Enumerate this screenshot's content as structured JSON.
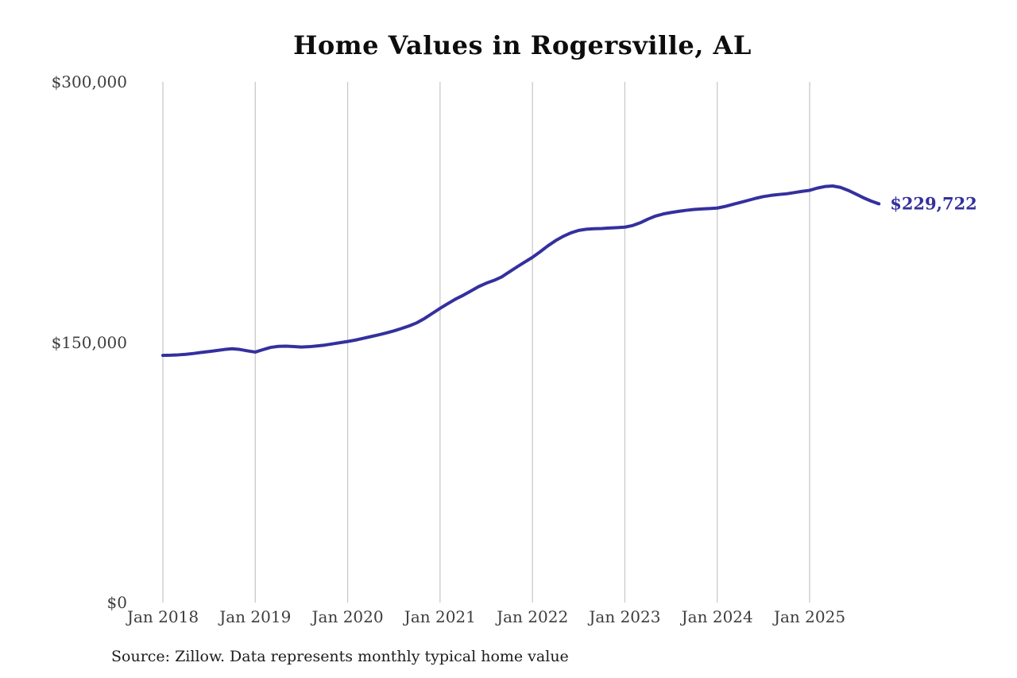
{
  "page": {
    "background": "#ffffff"
  },
  "chart_data": {
    "type": "line",
    "title": "Home Values in Rogersville, AL",
    "source_note": "Source: Zillow. Data represents monthly typical home value",
    "end_label": "$229,722",
    "line_color": "#34309e",
    "grid_color": "#c9c9c9",
    "grid": "vertical-only",
    "legend_position": "none",
    "xlabel": "",
    "ylabel": "",
    "y_axis": {
      "min": 0,
      "max": 300000,
      "ticks": [
        {
          "value": 0,
          "label": "$0"
        },
        {
          "value": 150000,
          "label": "$150,000"
        },
        {
          "value": 300000,
          "label": "$300,000"
        }
      ]
    },
    "x_axis": {
      "ticks": [
        {
          "month_index": 0,
          "label": "Jan 2018"
        },
        {
          "month_index": 12,
          "label": "Jan 2019"
        },
        {
          "month_index": 24,
          "label": "Jan 2020"
        },
        {
          "month_index": 36,
          "label": "Jan 2021"
        },
        {
          "month_index": 48,
          "label": "Jan 2022"
        },
        {
          "month_index": 60,
          "label": "Jan 2023"
        },
        {
          "month_index": 72,
          "label": "Jan 2024"
        },
        {
          "month_index": 84,
          "label": "Jan 2025"
        }
      ]
    },
    "series": [
      {
        "name": "Monthly typical home value",
        "x": [
          "2018-01",
          "2018-02",
          "2018-03",
          "2018-04",
          "2018-05",
          "2018-06",
          "2018-07",
          "2018-08",
          "2018-09",
          "2018-10",
          "2018-11",
          "2018-12",
          "2019-01",
          "2019-02",
          "2019-03",
          "2019-04",
          "2019-05",
          "2019-06",
          "2019-07",
          "2019-08",
          "2019-09",
          "2019-10",
          "2019-11",
          "2019-12",
          "2020-01",
          "2020-02",
          "2020-03",
          "2020-04",
          "2020-05",
          "2020-06",
          "2020-07",
          "2020-08",
          "2020-09",
          "2020-10",
          "2020-11",
          "2020-12",
          "2021-01",
          "2021-02",
          "2021-03",
          "2021-04",
          "2021-05",
          "2021-06",
          "2021-07",
          "2021-08",
          "2021-09",
          "2021-10",
          "2021-11",
          "2021-12",
          "2022-01",
          "2022-02",
          "2022-03",
          "2022-04",
          "2022-05",
          "2022-06",
          "2022-07",
          "2022-08",
          "2022-09",
          "2022-10",
          "2022-11",
          "2022-12",
          "2023-01",
          "2023-02",
          "2023-03",
          "2023-04",
          "2023-05",
          "2023-06",
          "2023-07",
          "2023-08",
          "2023-09",
          "2023-10",
          "2023-11",
          "2023-12",
          "2024-01",
          "2024-02",
          "2024-03",
          "2024-04",
          "2024-05",
          "2024-06",
          "2024-07",
          "2024-08",
          "2024-09",
          "2024-10",
          "2024-11",
          "2024-12",
          "2025-01",
          "2025-02",
          "2025-03",
          "2025-04",
          "2025-05",
          "2025-06",
          "2025-07",
          "2025-08",
          "2025-09",
          "2025-10"
        ],
        "values": [
          142400,
          142500,
          142700,
          143000,
          143500,
          144100,
          144600,
          145200,
          145800,
          146200,
          145800,
          145000,
          144300,
          145700,
          147000,
          147600,
          147700,
          147500,
          147200,
          147400,
          147800,
          148300,
          149000,
          149700,
          150400,
          151200,
          152200,
          153200,
          154200,
          155300,
          156500,
          157900,
          159400,
          161200,
          163700,
          166600,
          169500,
          172200,
          174800,
          177000,
          179500,
          182000,
          184000,
          185600,
          187600,
          190500,
          193400,
          196200,
          198900,
          202100,
          205500,
          208500,
          211000,
          213000,
          214400,
          215100,
          215400,
          215500,
          215800,
          216000,
          216300,
          217200,
          218800,
          220900,
          222700,
          223900,
          224700,
          225400,
          226000,
          226500,
          226800,
          227000,
          227300,
          228200,
          229400,
          230500,
          231700,
          232900,
          233900,
          234600,
          235100,
          235500,
          236200,
          236900,
          237500,
          238800,
          239700,
          240000,
          239200,
          237500,
          235400,
          233200,
          231300,
          229722
        ]
      }
    ]
  }
}
